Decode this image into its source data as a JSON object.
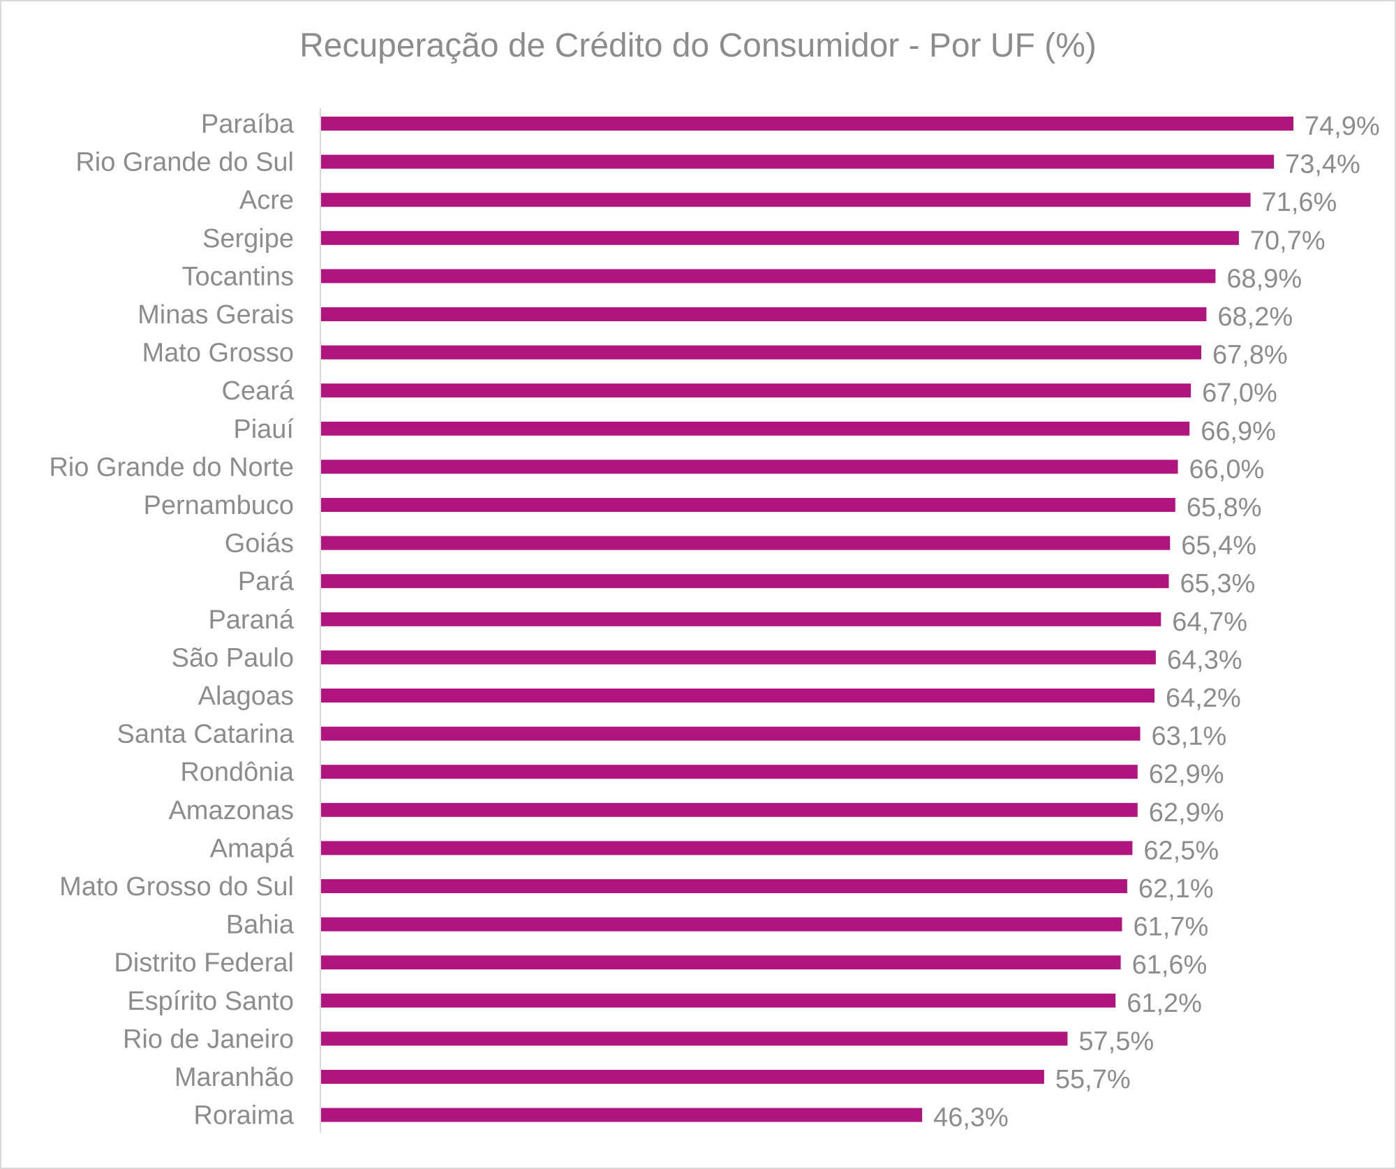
{
  "chart_data": {
    "type": "bar",
    "orientation": "horizontal",
    "title": "Recuperação de Crédito do Consumidor - Por UF (%)",
    "xlabel": "",
    "ylabel": "",
    "unit": "%",
    "grid": false,
    "legend": "none",
    "bar_color": "#b0157f",
    "xlim": [
      0,
      75
    ],
    "categories": [
      "Paraíba",
      "Rio Grande do Sul",
      "Acre",
      "Sergipe",
      "Tocantins",
      "Minas Gerais",
      "Mato Grosso",
      "Ceará",
      "Piauí",
      "Rio Grande do Norte",
      "Pernambuco",
      "Goiás",
      "Pará",
      "Paraná",
      "São Paulo",
      "Alagoas",
      "Santa Catarina",
      "Rondônia",
      "Amazonas",
      "Amapá",
      "Mato Grosso do Sul",
      "Bahia",
      "Distrito Federal",
      "Espírito Santo",
      "Rio de Janeiro",
      "Maranhão",
      "Roraima"
    ],
    "values": [
      74.9,
      73.4,
      71.6,
      70.7,
      68.9,
      68.2,
      67.8,
      67.0,
      66.9,
      66.0,
      65.8,
      65.4,
      65.3,
      64.7,
      64.3,
      64.2,
      63.1,
      62.9,
      62.9,
      62.5,
      62.1,
      61.7,
      61.6,
      61.2,
      57.5,
      55.7,
      46.3
    ],
    "data_labels": [
      "74,9%",
      "73,4%",
      "71,6%",
      "70,7%",
      "68,9%",
      "68,2%",
      "67,8%",
      "67,0%",
      "66,9%",
      "66,0%",
      "65,8%",
      "65,4%",
      "65,3%",
      "64,7%",
      "64,3%",
      "64,2%",
      "63,1%",
      "62,9%",
      "62,9%",
      "62,5%",
      "62,1%",
      "61,7%",
      "61,6%",
      "61,2%",
      "57,5%",
      "55,7%",
      "46,3%"
    ]
  }
}
